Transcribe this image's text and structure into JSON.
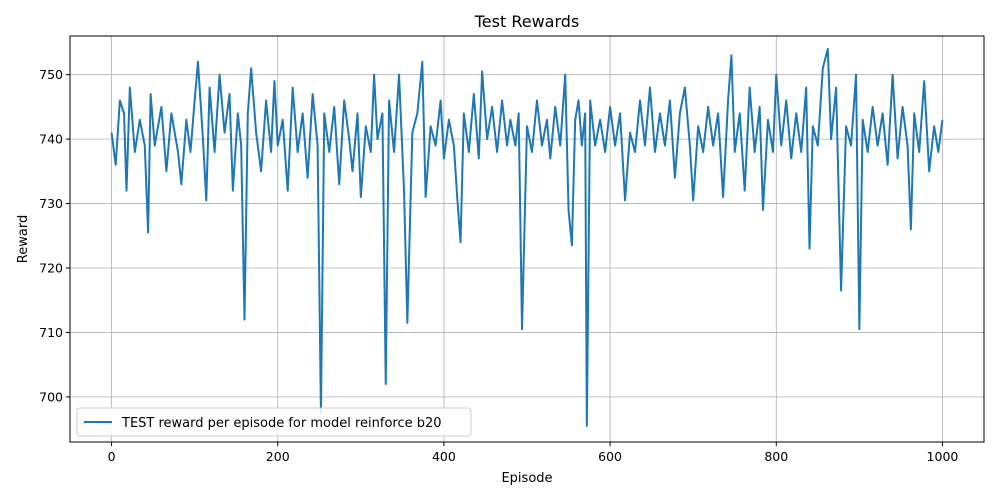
{
  "chart_data": {
    "type": "line",
    "title": "Test Rewards",
    "xlabel": "Episode",
    "ylabel": "Reward",
    "xlim": [
      -50,
      1050
    ],
    "ylim": [
      693,
      756
    ],
    "xticks": [
      0,
      200,
      400,
      600,
      800,
      1000
    ],
    "yticks": [
      700,
      710,
      720,
      730,
      740,
      750
    ],
    "grid": true,
    "legend_position": "lower-left",
    "series": [
      {
        "name": "TEST reward per episode for model reinforce b20",
        "color": "#1f77b4",
        "points": [
          [
            0,
            741
          ],
          [
            5,
            736
          ],
          [
            10,
            746
          ],
          [
            15,
            744
          ],
          [
            18,
            732
          ],
          [
            22,
            748
          ],
          [
            28,
            738
          ],
          [
            34,
            743
          ],
          [
            40,
            739
          ],
          [
            44,
            725.5
          ],
          [
            47,
            747
          ],
          [
            52,
            739
          ],
          [
            60,
            745
          ],
          [
            66,
            735
          ],
          [
            72,
            744
          ],
          [
            80,
            738
          ],
          [
            84,
            733
          ],
          [
            90,
            743
          ],
          [
            95,
            738
          ],
          [
            100,
            746
          ],
          [
            104,
            752
          ],
          [
            110,
            740
          ],
          [
            114,
            730.5
          ],
          [
            118,
            748
          ],
          [
            124,
            738
          ],
          [
            130,
            750
          ],
          [
            136,
            741
          ],
          [
            142,
            747
          ],
          [
            146,
            732
          ],
          [
            152,
            744
          ],
          [
            156,
            739
          ],
          [
            160,
            712
          ],
          [
            164,
            744
          ],
          [
            168,
            751
          ],
          [
            174,
            741
          ],
          [
            180,
            735
          ],
          [
            186,
            746
          ],
          [
            192,
            738
          ],
          [
            196,
            749
          ],
          [
            200,
            739
          ],
          [
            206,
            743
          ],
          [
            212,
            732
          ],
          [
            218,
            748
          ],
          [
            224,
            738
          ],
          [
            230,
            744
          ],
          [
            236,
            734
          ],
          [
            242,
            747
          ],
          [
            248,
            739
          ],
          [
            252,
            697.5
          ],
          [
            256,
            744
          ],
          [
            262,
            738
          ],
          [
            268,
            745
          ],
          [
            274,
            733
          ],
          [
            280,
            746
          ],
          [
            286,
            740
          ],
          [
            290,
            735
          ],
          [
            296,
            744
          ],
          [
            300,
            731
          ],
          [
            306,
            742
          ],
          [
            312,
            738
          ],
          [
            316,
            750
          ],
          [
            320,
            740
          ],
          [
            326,
            744
          ],
          [
            330,
            702
          ],
          [
            334,
            746
          ],
          [
            340,
            738
          ],
          [
            346,
            750
          ],
          [
            352,
            732
          ],
          [
            356,
            711.5
          ],
          [
            362,
            741
          ],
          [
            368,
            744
          ],
          [
            374,
            752
          ],
          [
            378,
            731
          ],
          [
            384,
            742
          ],
          [
            390,
            739
          ],
          [
            396,
            746
          ],
          [
            400,
            737
          ],
          [
            406,
            743
          ],
          [
            412,
            739
          ],
          [
            416,
            731
          ],
          [
            420,
            724
          ],
          [
            424,
            744
          ],
          [
            430,
            738
          ],
          [
            436,
            747
          ],
          [
            442,
            737
          ],
          [
            446,
            750.5
          ],
          [
            452,
            740
          ],
          [
            458,
            745
          ],
          [
            464,
            738
          ],
          [
            470,
            746
          ],
          [
            476,
            739
          ],
          [
            480,
            743
          ],
          [
            486,
            739
          ],
          [
            490,
            744
          ],
          [
            494,
            710.5
          ],
          [
            500,
            742
          ],
          [
            506,
            738
          ],
          [
            512,
            746
          ],
          [
            518,
            739
          ],
          [
            524,
            743
          ],
          [
            528,
            737
          ],
          [
            534,
            745
          ],
          [
            540,
            739
          ],
          [
            546,
            750
          ],
          [
            550,
            729
          ],
          [
            554,
            723.5
          ],
          [
            558,
            743
          ],
          [
            562,
            746
          ],
          [
            566,
            739
          ],
          [
            570,
            744
          ],
          [
            572,
            695.5
          ],
          [
            576,
            746
          ],
          [
            582,
            739
          ],
          [
            588,
            743
          ],
          [
            594,
            738
          ],
          [
            600,
            745
          ],
          [
            606,
            739
          ],
          [
            612,
            744
          ],
          [
            618,
            730.5
          ],
          [
            624,
            741
          ],
          [
            630,
            738
          ],
          [
            636,
            746
          ],
          [
            642,
            739
          ],
          [
            648,
            748
          ],
          [
            654,
            738
          ],
          [
            660,
            744
          ],
          [
            666,
            739
          ],
          [
            672,
            746
          ],
          [
            678,
            734
          ],
          [
            684,
            744
          ],
          [
            690,
            748
          ],
          [
            696,
            739
          ],
          [
            700,
            730.5
          ],
          [
            706,
            742
          ],
          [
            712,
            738
          ],
          [
            718,
            745
          ],
          [
            724,
            739
          ],
          [
            730,
            744
          ],
          [
            736,
            731
          ],
          [
            742,
            746
          ],
          [
            746,
            753
          ],
          [
            750,
            738
          ],
          [
            756,
            744
          ],
          [
            762,
            732
          ],
          [
            768,
            748
          ],
          [
            774,
            738
          ],
          [
            780,
            745
          ],
          [
            784,
            729
          ],
          [
            790,
            743
          ],
          [
            796,
            738
          ],
          [
            800,
            750
          ],
          [
            806,
            739
          ],
          [
            812,
            746
          ],
          [
            818,
            737
          ],
          [
            824,
            744
          ],
          [
            830,
            738
          ],
          [
            836,
            748
          ],
          [
            840,
            723
          ],
          [
            844,
            742
          ],
          [
            850,
            739
          ],
          [
            856,
            751
          ],
          [
            862,
            754
          ],
          [
            866,
            740
          ],
          [
            872,
            748
          ],
          [
            878,
            716.5
          ],
          [
            884,
            742
          ],
          [
            890,
            739
          ],
          [
            896,
            750
          ],
          [
            900,
            710.5
          ],
          [
            904,
            743
          ],
          [
            910,
            738
          ],
          [
            916,
            745
          ],
          [
            922,
            739
          ],
          [
            928,
            744
          ],
          [
            934,
            736
          ],
          [
            940,
            750
          ],
          [
            946,
            737
          ],
          [
            952,
            745
          ],
          [
            958,
            739
          ],
          [
            962,
            726
          ],
          [
            966,
            744
          ],
          [
            972,
            738
          ],
          [
            978,
            749
          ],
          [
            984,
            735
          ],
          [
            990,
            742
          ],
          [
            995,
            738
          ],
          [
            1000,
            743
          ]
        ]
      }
    ]
  }
}
